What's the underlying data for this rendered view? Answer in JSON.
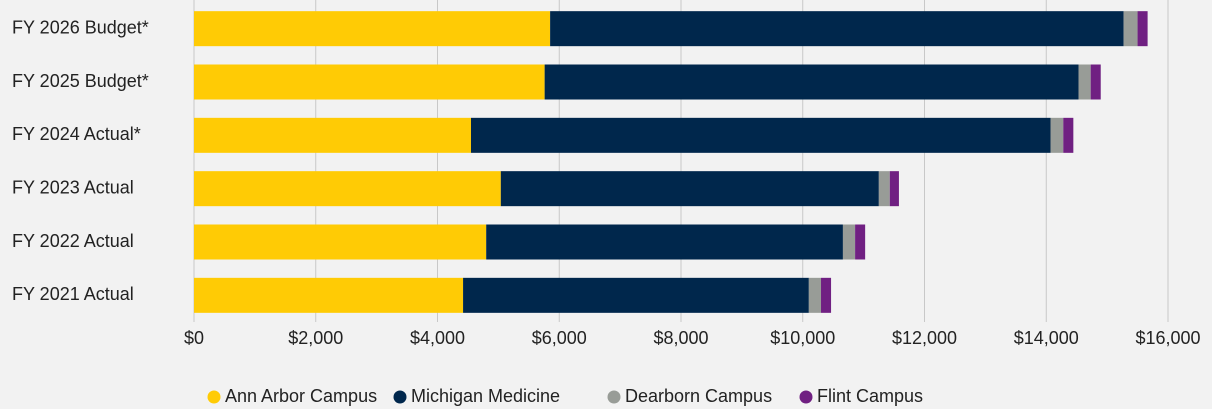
{
  "chart_data": {
    "type": "stacked-horizontal-bar",
    "categories": [
      "FY 2026 Budget*",
      "FY 2025 Budget*",
      "FY 2024 Actual*",
      "FY 2023 Actual",
      "FY 2022 Actual",
      "FY 2021 Actual"
    ],
    "series": [
      {
        "name": "Ann Arbor Campus",
        "color": "#ffcb05",
        "values": [
          5850,
          5760,
          4550,
          5040,
          4800,
          4420
        ]
      },
      {
        "name": "Michigan Medicine",
        "color": "#00274c",
        "values": [
          9420,
          8770,
          9520,
          6210,
          5860,
          5680
        ]
      },
      {
        "name": "Dearborn Campus",
        "color": "#989c97",
        "values": [
          230,
          200,
          210,
          180,
          200,
          200
        ]
      },
      {
        "name": "Flint Campus",
        "color": "#702082",
        "values": [
          165,
          165,
          165,
          150,
          165,
          165
        ]
      }
    ],
    "xlim": [
      0,
      16000
    ],
    "xticks": [
      {
        "value": 0,
        "label": "$0"
      },
      {
        "value": 2000,
        "label": "$2,000"
      },
      {
        "value": 4000,
        "label": "$4,000"
      },
      {
        "value": 6000,
        "label": "$6,000"
      },
      {
        "value": 8000,
        "label": "$8,000"
      },
      {
        "value": 10000,
        "label": "$10,000"
      },
      {
        "value": 12000,
        "label": "$12,000"
      },
      {
        "value": 14000,
        "label": "$14,000"
      },
      {
        "value": 16000,
        "label": "$16,000"
      }
    ],
    "grid": true,
    "legend": "bottom"
  }
}
